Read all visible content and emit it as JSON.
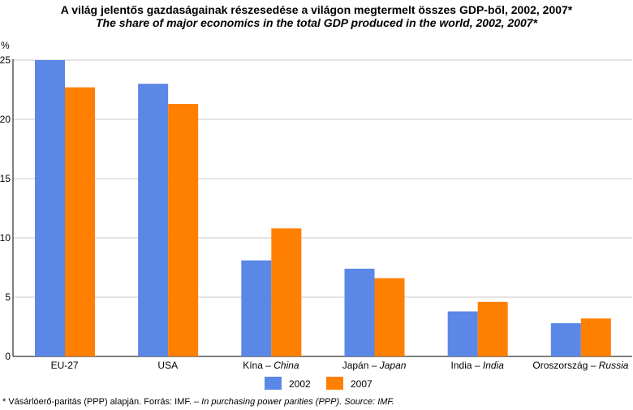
{
  "title_hu": "A világ jelentős gazdaságainak részesedése a világon megtermelt összes GDP-ből, 2002, 2007*",
  "title_en": "The share of major economics in the total GDP produced in the  world, 2002, 2007*",
  "footnote": {
    "hu": "* Vásárlóerő-paritás (PPP) alapján. Forrás: IMF. – ",
    "en": "In purchasing power parities (PPP). Source: IMF."
  },
  "colors": {
    "s2002": "#5b87e6",
    "s2007": "#ff7f00",
    "grid": "#c8c8c8",
    "axis": "#000000"
  },
  "chart_data": {
    "type": "bar",
    "ylabel": "%",
    "ylim": [
      0,
      25
    ],
    "yticks": [
      0,
      5,
      10,
      15,
      20,
      25
    ],
    "grid": true,
    "legend_position": "bottom",
    "categories": [
      {
        "main": "EU-27",
        "italic": ""
      },
      {
        "main": "USA",
        "italic": ""
      },
      {
        "main": "Kína – ",
        "italic": "China"
      },
      {
        "main": "Japán – ",
        "italic": "Japan"
      },
      {
        "main": "India – ",
        "italic": "India"
      },
      {
        "main": "Oroszország – ",
        "italic": "Russia"
      }
    ],
    "series": [
      {
        "name": "2002",
        "values": [
          25.0,
          23.0,
          8.1,
          7.4,
          3.8,
          2.8
        ]
      },
      {
        "name": "2007",
        "values": [
          22.7,
          21.3,
          10.8,
          6.6,
          4.6,
          3.2
        ]
      }
    ]
  }
}
